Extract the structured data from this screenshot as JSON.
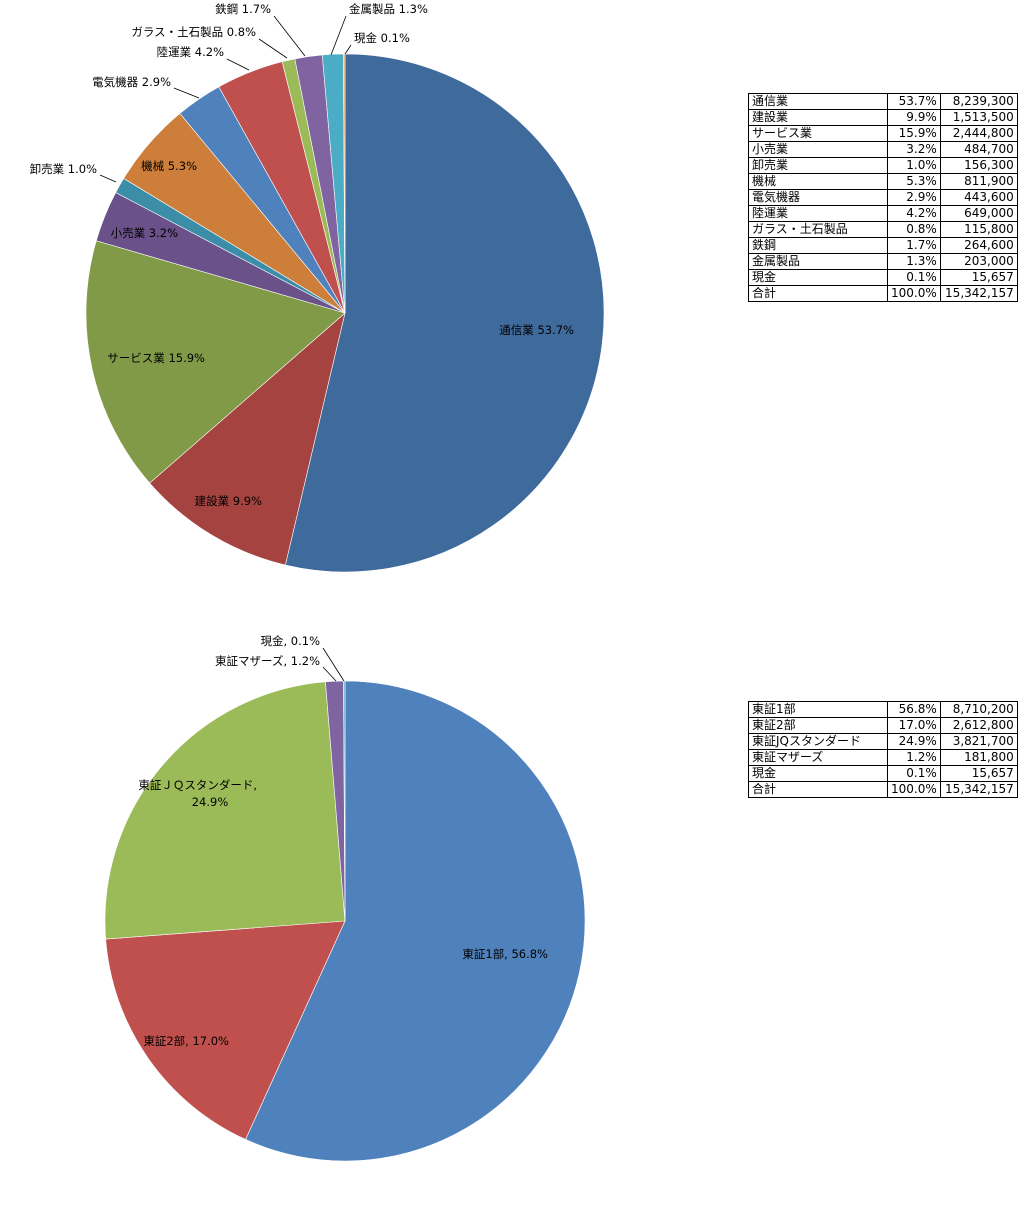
{
  "chart_data": [
    {
      "type": "pie",
      "slices": [
        {
          "label": "通信業",
          "pct_label": "53.7%",
          "pct": 53.7,
          "value": 8239300,
          "value_label": "8,239,300",
          "color": "#3F6A9C"
        },
        {
          "label": "建設業",
          "pct_label": "9.9%",
          "pct": 9.9,
          "value": 1513500,
          "value_label": "1,513,500",
          "color": "#A4433F"
        },
        {
          "label": "サービス業",
          "pct_label": "15.9%",
          "pct": 15.9,
          "value": 2444800,
          "value_label": "2,444,800",
          "color": "#819A47"
        },
        {
          "label": "小売業",
          "pct_label": "3.2%",
          "pct": 3.2,
          "value": 484700,
          "value_label": "484,700",
          "color": "#6A5189"
        },
        {
          "label": "卸売業",
          "pct_label": "1.0%",
          "pct": 1.0,
          "value": 156300,
          "value_label": "156,300",
          "color": "#3C8EA8"
        },
        {
          "label": "機械",
          "pct_label": "5.3%",
          "pct": 5.3,
          "value": 811900,
          "value_label": "811,900",
          "color": "#CD7E3A"
        },
        {
          "label": "電気機器",
          "pct_label": "2.9%",
          "pct": 2.9,
          "value": 443600,
          "value_label": "443,600",
          "color": "#4F81BD"
        },
        {
          "label": "陸運業",
          "pct_label": "4.2%",
          "pct": 4.2,
          "value": 649000,
          "value_label": "649,000",
          "color": "#C0504D"
        },
        {
          "label": "ガラス・土石製品",
          "pct_label": "0.8%",
          "pct": 0.8,
          "value": 115800,
          "value_label": "115,800",
          "color": "#9BBB59"
        },
        {
          "label": "鉄鋼",
          "pct_label": "1.7%",
          "pct": 1.7,
          "value": 264600,
          "value_label": "264,600",
          "color": "#8064A2"
        },
        {
          "label": "金属製品",
          "pct_label": "1.3%",
          "pct": 1.3,
          "value": 203000,
          "value_label": "203,000",
          "color": "#4BACC6"
        },
        {
          "label": "現金",
          "pct_label": "0.1%",
          "pct": 0.1,
          "value": 15657,
          "value_label": "15,657",
          "color": "#F79646"
        }
      ],
      "total": {
        "label": "合計",
        "pct_label": "100.0%",
        "value_label": "15,342,157"
      }
    },
    {
      "type": "pie",
      "slices": [
        {
          "label": "東証1部",
          "chart_label": "東証1部, 56.8%",
          "pct_label": "56.8%",
          "pct": 56.8,
          "value": 8710200,
          "value_label": "8,710,200",
          "color": "#4F81BD"
        },
        {
          "label": "東証2部",
          "chart_label": "東証2部, 17.0%",
          "pct_label": "17.0%",
          "pct": 17.0,
          "value": 2612800,
          "value_label": "2,612,800",
          "color": "#C0504D"
        },
        {
          "label": "東証JQスタンダード",
          "chart_label": "東証ＪＱスタンダード,",
          "chart_label2": "24.9%",
          "pct_label": "24.9%",
          "pct": 24.9,
          "value": 3821700,
          "value_label": "3,821,700",
          "color": "#9BBB59"
        },
        {
          "label": "東証マザーズ",
          "chart_label": "東証マザーズ, 1.2%",
          "pct_label": "1.2%",
          "pct": 1.2,
          "value": 181800,
          "value_label": "181,800",
          "color": "#8064A2"
        },
        {
          "label": "現金",
          "chart_label": "現金, 0.1%",
          "pct_label": "0.1%",
          "pct": 0.1,
          "value": 15657,
          "value_label": "15,657",
          "color": "#4BACC6"
        }
      ],
      "total": {
        "label": "合計",
        "pct_label": "100.0%",
        "value_label": "15,342,157"
      }
    }
  ]
}
